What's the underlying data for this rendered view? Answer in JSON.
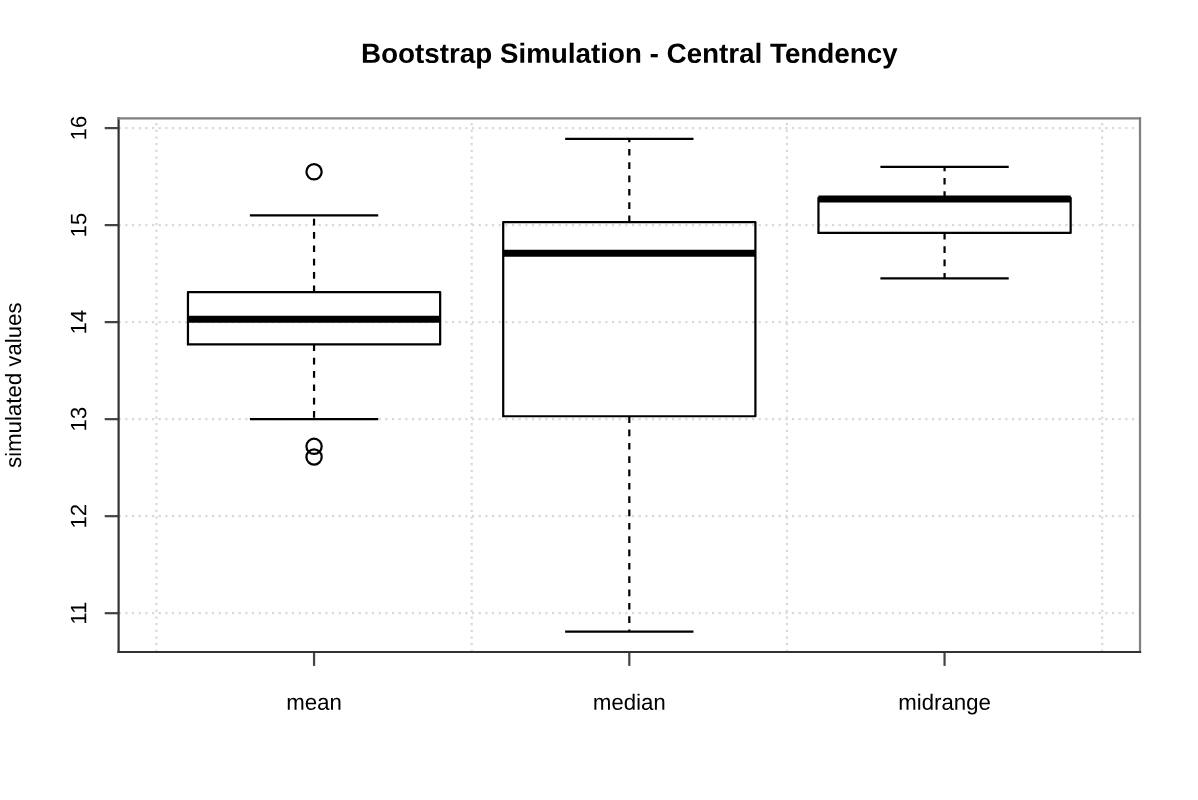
{
  "chart_data": {
    "type": "box",
    "title": "Bootstrap Simulation - Central Tendency",
    "ylabel": "simulated values",
    "categories": [
      "mean",
      "median",
      "midrange"
    ],
    "boxes": [
      {
        "low": 13.0,
        "q1": 13.77,
        "median": 14.03,
        "q3": 14.31,
        "high": 15.1,
        "outliers": [
          15.55,
          12.72,
          12.61
        ]
      },
      {
        "low": 10.81,
        "q1": 13.03,
        "median": 14.71,
        "q3": 15.03,
        "high": 15.89
      },
      {
        "low": 14.45,
        "q1": 14.92,
        "median": 15.27,
        "q3": 15.28,
        "high": 15.6
      }
    ],
    "ylim": [
      10.6,
      16.1
    ],
    "yticks": [
      11,
      12,
      13,
      14,
      15,
      16
    ],
    "grid": true
  }
}
